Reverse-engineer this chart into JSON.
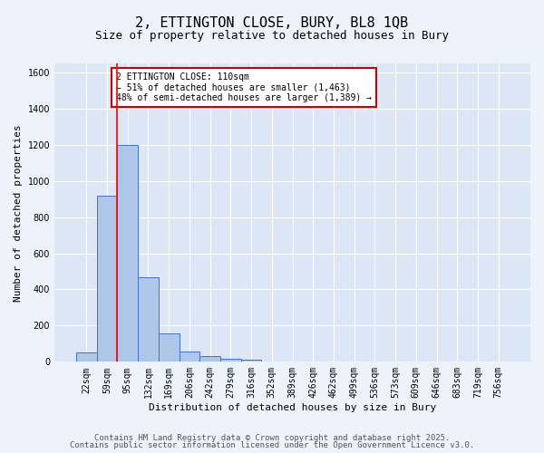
{
  "title1": "2, ETTINGTON CLOSE, BURY, BL8 1QB",
  "title2": "Size of property relative to detached houses in Bury",
  "xlabel": "Distribution of detached houses by size in Bury",
  "ylabel": "Number of detached properties",
  "bin_labels": [
    "22sqm",
    "59sqm",
    "95sqm",
    "132sqm",
    "169sqm",
    "206sqm",
    "242sqm",
    "279sqm",
    "316sqm",
    "352sqm",
    "389sqm",
    "426sqm",
    "462sqm",
    "499sqm",
    "536sqm",
    "573sqm",
    "609sqm",
    "646sqm",
    "683sqm",
    "719sqm",
    "756sqm"
  ],
  "bar_values": [
    50,
    920,
    1200,
    470,
    155,
    55,
    30,
    15,
    10,
    0,
    0,
    0,
    0,
    0,
    0,
    0,
    0,
    0,
    0,
    0,
    0
  ],
  "bar_color": "#aec6e8",
  "bar_edgecolor": "#4472c4",
  "background_color": "#dce6f5",
  "grid_color": "#ffffff",
  "red_line_xidx": 2,
  "annotation_text": "2 ETTINGTON CLOSE: 110sqm\n← 51% of detached houses are smaller (1,463)\n48% of semi-detached houses are larger (1,389) →",
  "annotation_box_color": "#ffffff",
  "annotation_box_edgecolor": "#cc0000",
  "ylim": [
    0,
    1650
  ],
  "yticks": [
    0,
    200,
    400,
    600,
    800,
    1000,
    1200,
    1400,
    1600
  ],
  "footer1": "Contains HM Land Registry data © Crown copyright and database right 2025.",
  "footer2": "Contains public sector information licensed under the Open Government Licence v3.0.",
  "title_fontsize": 11,
  "subtitle_fontsize": 9,
  "axis_label_fontsize": 8,
  "tick_fontsize": 7,
  "annotation_fontsize": 7,
  "footer_fontsize": 6.5
}
